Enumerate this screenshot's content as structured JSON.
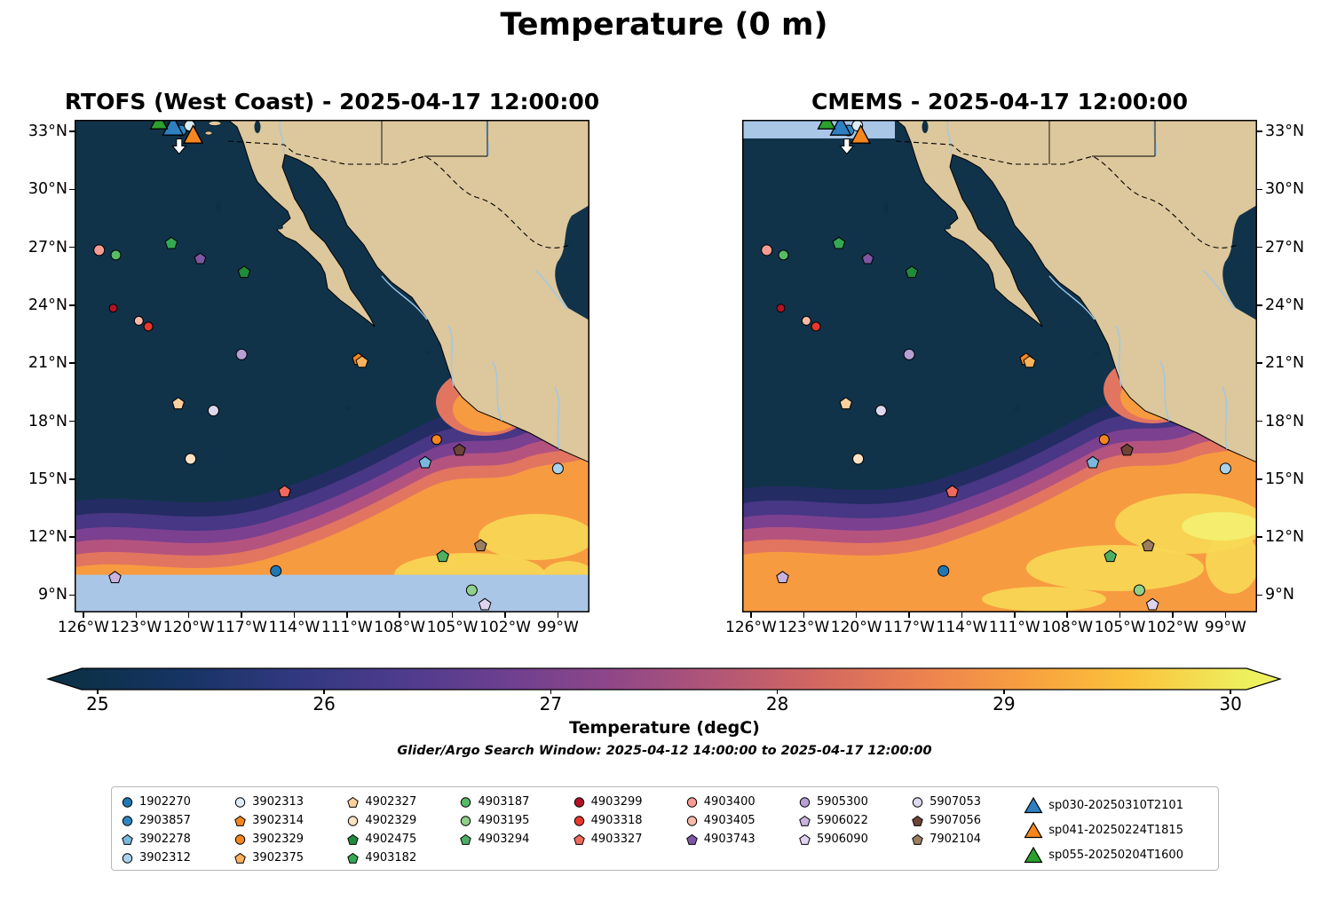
{
  "title": "Temperature (0 m)",
  "panels": [
    {
      "title": "RTOFS (West Coast) - 2025-04-17 12:00:00"
    },
    {
      "title": "CMEMS - 2025-04-17 12:00:00"
    }
  ],
  "subtitle": "Glider/Argo Search Window: 2025-04-12 14:00:00 to 2025-04-17 12:00:00",
  "axes": {
    "lat": [
      {
        "label": "33°N",
        "deg": 33
      },
      {
        "label": "30°N",
        "deg": 30
      },
      {
        "label": "27°N",
        "deg": 27
      },
      {
        "label": "24°N",
        "deg": 24
      },
      {
        "label": "21°N",
        "deg": 21
      },
      {
        "label": "18°N",
        "deg": 18
      },
      {
        "label": "15°N",
        "deg": 15
      },
      {
        "label": "12°N",
        "deg": 12
      },
      {
        "label": "9°N",
        "deg": 9
      }
    ],
    "lon": [
      {
        "label": "126°W",
        "deg": 126
      },
      {
        "label": "123°W",
        "deg": 123
      },
      {
        "label": "120°W",
        "deg": 120
      },
      {
        "label": "117°W",
        "deg": 117
      },
      {
        "label": "114°W",
        "deg": 114
      },
      {
        "label": "111°W",
        "deg": 111
      },
      {
        "label": "108°W",
        "deg": 108
      },
      {
        "label": "105°W",
        "deg": 105
      },
      {
        "label": "102°W",
        "deg": 102
      },
      {
        "label": "99°W",
        "deg": 99
      }
    ]
  },
  "colorbar": {
    "label": "Temperature (degC)",
    "ticks": [
      "25",
      "26",
      "27",
      "28",
      "29",
      "30"
    ],
    "tick_values": [
      25,
      26,
      27,
      28,
      29,
      30
    ],
    "min": 25,
    "max": 30,
    "stops": [
      [
        0,
        "#0c3148"
      ],
      [
        0.09,
        "#173464"
      ],
      [
        0.18,
        "#30387f"
      ],
      [
        0.27,
        "#4c3b8c"
      ],
      [
        0.36,
        "#6b3f90"
      ],
      [
        0.45,
        "#8d4689"
      ],
      [
        0.54,
        "#b05577"
      ],
      [
        0.63,
        "#d26762"
      ],
      [
        0.72,
        "#ec8150"
      ],
      [
        0.81,
        "#f8a03f"
      ],
      [
        0.9,
        "#fbc23c"
      ],
      [
        1,
        "#eef05e"
      ]
    ]
  },
  "map_colors": {
    "land": "#ddc79c",
    "ocean_cold": "#10334a",
    "no_data": "#a9c6e6",
    "river": "#9ec8e8"
  },
  "chart_data": {
    "type": "heatmap",
    "title": "Temperature (0 m)",
    "variable": "Temperature (degC)",
    "depth_m": 0,
    "valid_time": "2025-04-17 12:00:00",
    "models": [
      "RTOFS (West Coast)",
      "CMEMS"
    ],
    "temp_range_degc": [
      25,
      30
    ],
    "lat_ticks_degN": [
      33,
      30,
      27,
      24,
      21,
      18,
      15,
      12,
      9
    ],
    "lon_ticks_degW": [
      126,
      123,
      120,
      117,
      114,
      111,
      108,
      105,
      102,
      99
    ],
    "search_window": "2025-04-12 14:00:00 to 2025-04-17 12:00:00",
    "argo_floats": [
      {
        "id": "1902270",
        "marker": "circle",
        "color": "#1f77b4",
        "lon": 115.05,
        "lat": 10.25
      },
      {
        "id": "2903857",
        "marker": "circle",
        "color": "#2f87c3",
        "lon": 120.45,
        "lat": 33.05
      },
      {
        "id": "3902278",
        "marker": "pentagon",
        "color": "#7ab8dc",
        "lon": 106.55,
        "lat": 15.85
      },
      {
        "id": "3902312",
        "marker": "circle",
        "color": "#a8d3ea",
        "lon": 99.0,
        "lat": 15.55
      },
      {
        "id": "3902313",
        "marker": "circle",
        "color": "#ddedf7",
        "lon": 119.95,
        "lat": 33.3
      },
      {
        "id": "3902314",
        "marker": "pentagon",
        "color": "#f5861f",
        "lon": 110.35,
        "lat": 21.2
      },
      {
        "id": "3902329",
        "marker": "circle",
        "color": "#f5861f",
        "lon": 105.9,
        "lat": 17.05,
        "r": 5.5
      },
      {
        "id": "3902375",
        "marker": "pentagon",
        "color": "#fbb25c",
        "lon": 110.15,
        "lat": 21.05
      },
      {
        "id": "4902327",
        "marker": "pentagon",
        "color": "#fdd09e",
        "lon": 120.6,
        "lat": 18.9
      },
      {
        "id": "4902329",
        "marker": "circle",
        "color": "#fde3c3",
        "lon": 119.9,
        "lat": 16.05
      },
      {
        "id": "4902475",
        "marker": "pentagon",
        "color": "#208b3a",
        "lon": 116.85,
        "lat": 25.7
      },
      {
        "id": "4903182",
        "marker": "pentagon",
        "color": "#34a853",
        "lon": 121.0,
        "lat": 27.2
      },
      {
        "id": "4903187",
        "marker": "circle",
        "color": "#57bb66",
        "lon": 124.15,
        "lat": 26.6,
        "r": 5.5
      },
      {
        "id": "4903195",
        "marker": "circle",
        "color": "#8fd08a",
        "lon": 103.9,
        "lat": 9.25
      },
      {
        "id": "4903294",
        "marker": "pentagon",
        "color": "#4daf62",
        "lon": 105.55,
        "lat": 11.0
      },
      {
        "id": "4903299",
        "marker": "circle",
        "color": "#b11226",
        "lon": 124.3,
        "lat": 23.85,
        "r": 4.5
      },
      {
        "id": "4903318",
        "marker": "circle",
        "color": "#e8372c",
        "lon": 122.3,
        "lat": 22.9,
        "r": 5
      },
      {
        "id": "4903327",
        "marker": "pentagon",
        "color": "#f0695c",
        "lon": 114.55,
        "lat": 14.35
      },
      {
        "id": "4903400",
        "marker": "circle",
        "color": "#f79c94",
        "lon": 125.1,
        "lat": 26.85
      },
      {
        "id": "4903405",
        "marker": "circle",
        "color": "#f9b9a8",
        "lon": 122.85,
        "lat": 23.2,
        "r": 5
      },
      {
        "id": "4903743",
        "marker": "pentagon",
        "color": "#7e57a2",
        "lon": 119.35,
        "lat": 26.4,
        "r": 5.5
      },
      {
        "id": "5905300",
        "marker": "circle",
        "color": "#b79fd4",
        "lon": 117.0,
        "lat": 21.45
      },
      {
        "id": "5906022",
        "marker": "pentagon",
        "color": "#c9b3dc",
        "lon": 124.2,
        "lat": 9.9
      },
      {
        "id": "5906090",
        "marker": "pentagon",
        "color": "#e0d3ee",
        "lon": 103.15,
        "lat": 8.5
      },
      {
        "id": "5907053",
        "marker": "circle",
        "color": "#ded8ee",
        "lon": 118.6,
        "lat": 18.55
      },
      {
        "id": "5907056",
        "marker": "pentagon",
        "color": "#6e4438",
        "lon": 104.6,
        "lat": 16.5
      },
      {
        "id": "7902104",
        "marker": "pentagon",
        "color": "#9b7d60",
        "lon": 103.4,
        "lat": 11.55
      }
    ],
    "gliders": [
      {
        "id": "sp030-20250310T2101",
        "marker": "triangle-up",
        "color": "#2d7fc1",
        "lon": 120.9,
        "lat": 33.25,
        "size": 12
      },
      {
        "id": "sp041-20250224T1815",
        "marker": "triangle-up",
        "color": "#f5861f",
        "lon": 119.75,
        "lat": 32.8,
        "size": 11
      },
      {
        "id": "sp055-20250204T1600",
        "marker": "triangle-up",
        "color": "#2ca02c",
        "lon": 121.7,
        "lat": 33.5,
        "size": 10
      }
    ],
    "extra_markers": [
      {
        "name": "glider-surfacing-arrow",
        "marker": "arrow-down",
        "color": "#ffffff",
        "lon": 120.55,
        "lat": 32.2
      }
    ]
  }
}
